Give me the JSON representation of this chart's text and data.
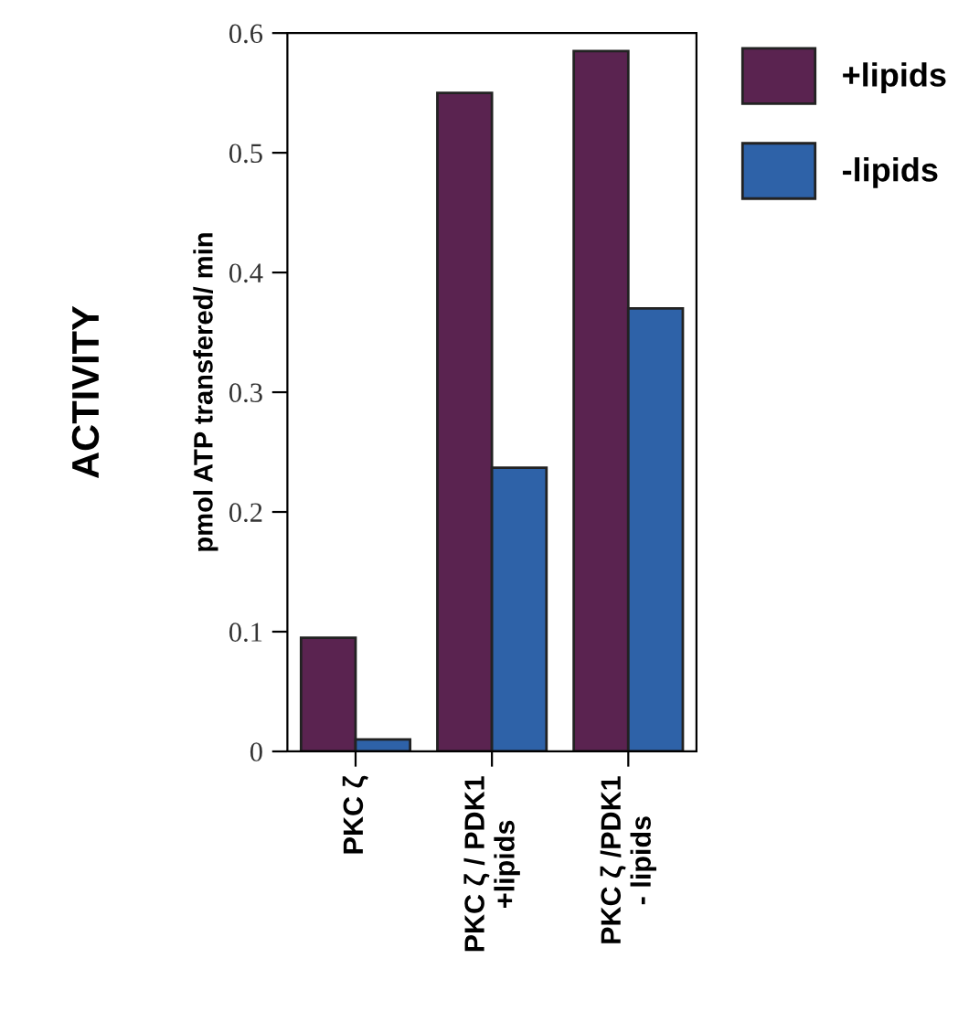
{
  "chart_data": {
    "type": "bar",
    "ylabel": "ACTIVITY",
    "annotations": [
      "pmol ATP transfered/ min"
    ],
    "categories": [
      "PKC ζ",
      "PKC ζ / PDK1\n+lipids",
      "PKC ζ /PDK1\n- lipids"
    ],
    "series": [
      {
        "name": "+lipids",
        "color": "#5a2350",
        "values": [
          0.095,
          0.55,
          0.585
        ]
      },
      {
        "name": "-lipids",
        "color": "#2e62a8",
        "values": [
          0.01,
          0.237,
          0.37
        ]
      }
    ],
    "ylim": [
      0,
      0.6
    ],
    "yticks": [
      0,
      0.1,
      0.2,
      0.3,
      0.4,
      0.5,
      0.6
    ],
    "grid": false,
    "legend": "top right"
  }
}
